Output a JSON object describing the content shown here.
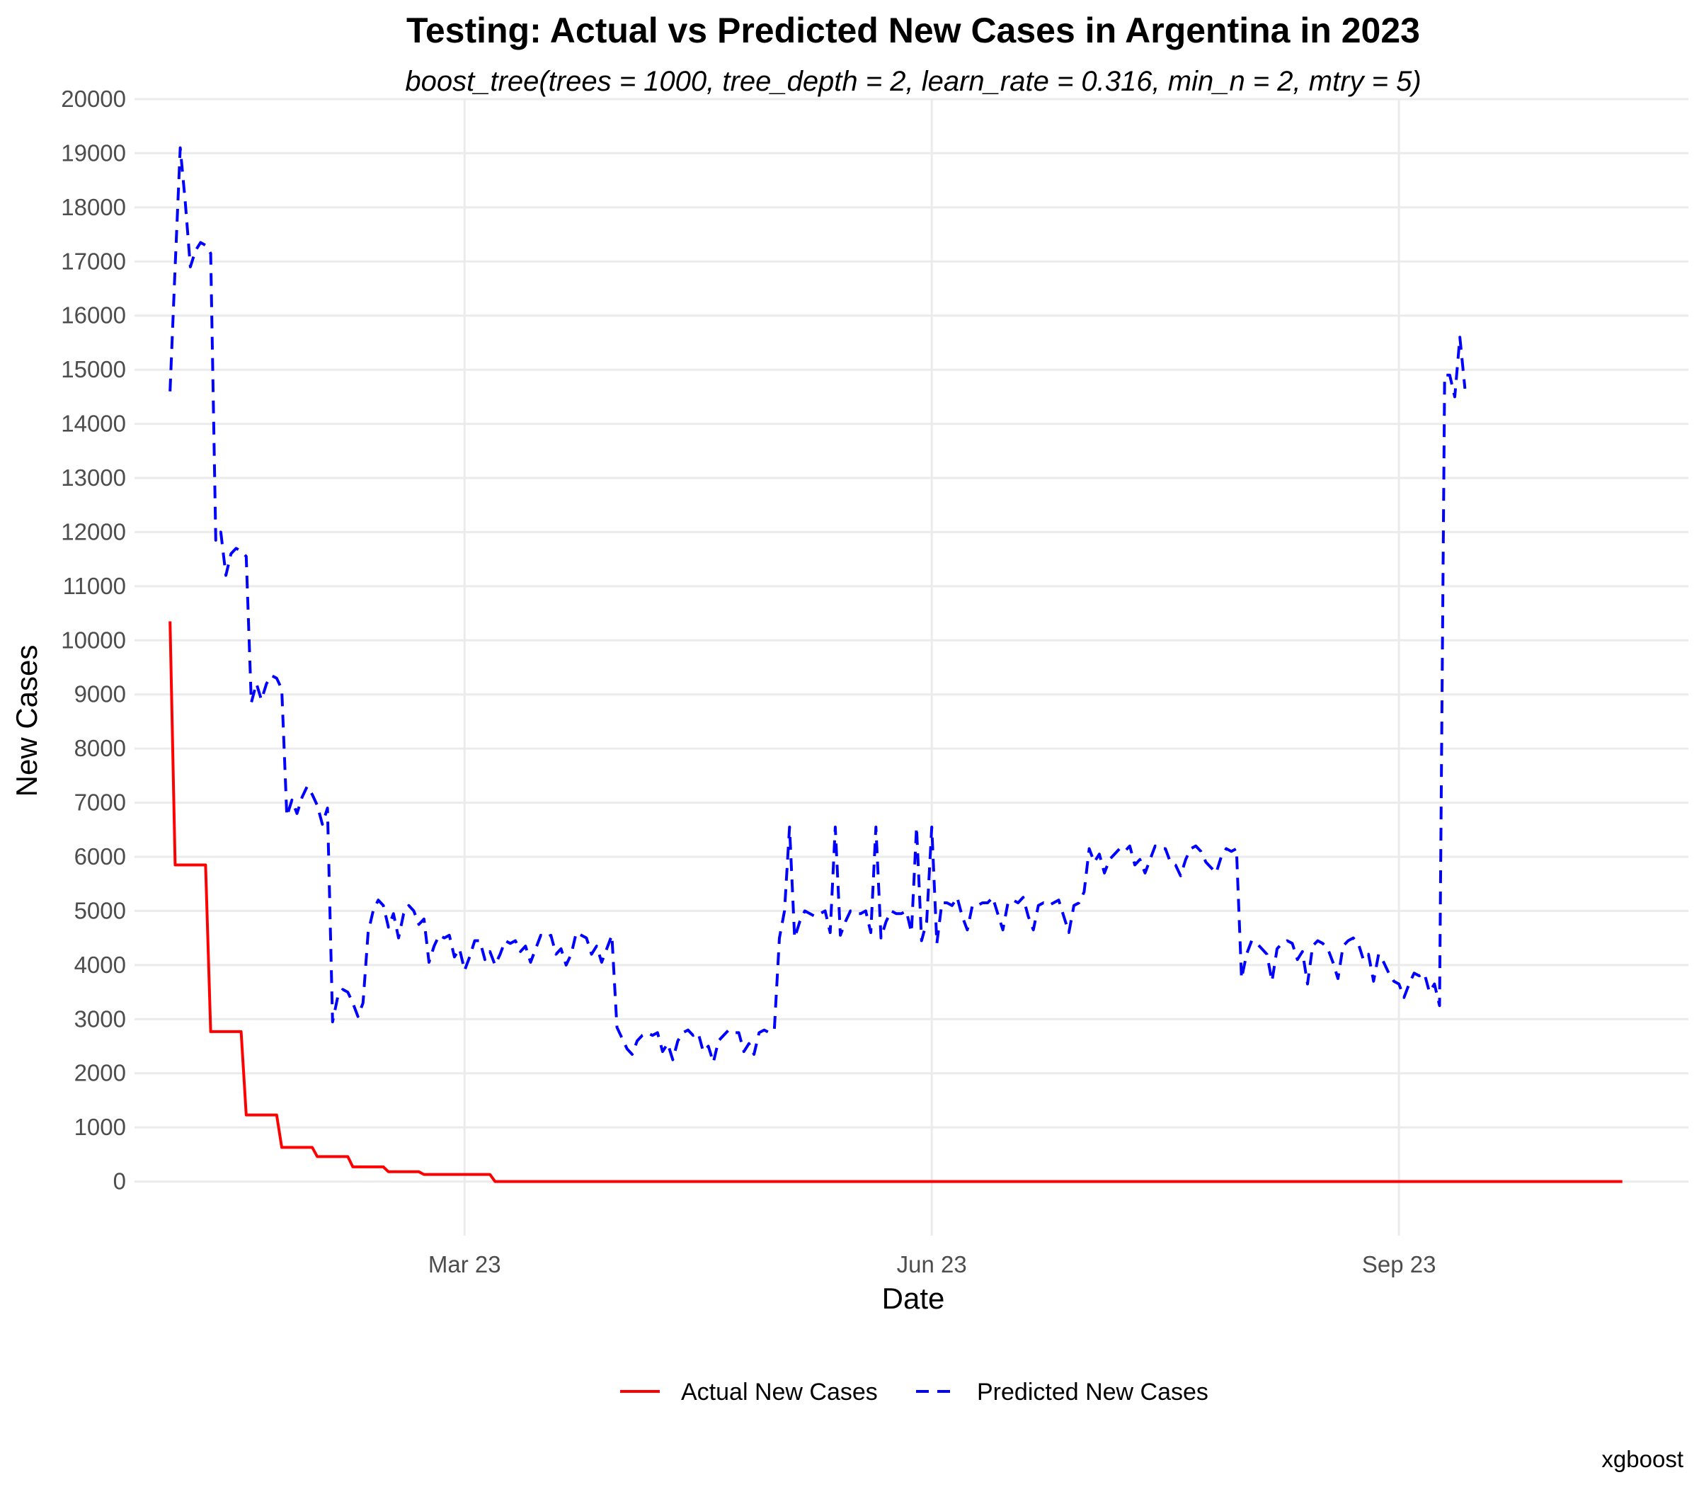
{
  "chart_data": {
    "type": "line",
    "title": "Testing: Actual vs Predicted New Cases in Argentina in 2023",
    "subtitle": "boost_tree(trees = 1000, tree_depth = 2, learn_rate = 0.316, min_n = 2, mtry = 5)",
    "xlabel": "Date",
    "ylabel": "New Cases",
    "caption": "xgboost",
    "ylim": [
      -1000,
      20000
    ],
    "xlim": [
      "2022-12-26",
      "2023-10-28"
    ],
    "x_ticks": [
      {
        "date": "2023-03-01",
        "label": "Mar 23"
      },
      {
        "date": "2023-06-01",
        "label": "Jun 23"
      },
      {
        "date": "2023-09-01",
        "label": "Sep 23"
      }
    ],
    "y_ticks": [
      0,
      1000,
      2000,
      3000,
      4000,
      5000,
      6000,
      7000,
      8000,
      9000,
      10000,
      11000,
      12000,
      13000,
      14000,
      15000,
      16000,
      17000,
      18000,
      19000,
      20000
    ],
    "grid": true,
    "legend_position": "bottom",
    "series": [
      {
        "name": "Actual New Cases",
        "color": "#ff0000",
        "dash": "solid",
        "points": [
          [
            "2023-01-02",
            10350
          ],
          [
            "2023-01-03",
            5850
          ],
          [
            "2023-01-09",
            5850
          ],
          [
            "2023-01-10",
            2770
          ],
          [
            "2023-01-16",
            2770
          ],
          [
            "2023-01-17",
            1230
          ],
          [
            "2023-01-23",
            1230
          ],
          [
            "2023-01-24",
            630
          ],
          [
            "2023-01-30",
            630
          ],
          [
            "2023-01-31",
            460
          ],
          [
            "2023-02-06",
            460
          ],
          [
            "2023-02-07",
            270
          ],
          [
            "2023-02-13",
            270
          ],
          [
            "2023-02-14",
            180
          ],
          [
            "2023-02-20",
            180
          ],
          [
            "2023-02-21",
            130
          ],
          [
            "2023-03-06",
            130
          ],
          [
            "2023-03-07",
            0
          ],
          [
            "2023-10-15",
            0
          ]
        ]
      },
      {
        "name": "Predicted New Cases",
        "color": "#0000ff",
        "dash": "dashed",
        "points": [
          [
            "2023-01-02",
            14600
          ],
          [
            "2023-01-03",
            16900
          ],
          [
            "2023-01-04",
            19100
          ],
          [
            "2023-01-05",
            18100
          ],
          [
            "2023-01-06",
            16900
          ],
          [
            "2023-01-07",
            17200
          ],
          [
            "2023-01-08",
            17350
          ],
          [
            "2023-01-09",
            17300
          ],
          [
            "2023-01-10",
            17150
          ],
          [
            "2023-01-11",
            11850
          ],
          [
            "2023-01-12",
            12000
          ],
          [
            "2023-01-13",
            11200
          ],
          [
            "2023-01-14",
            11600
          ],
          [
            "2023-01-15",
            11700
          ],
          [
            "2023-01-16",
            11650
          ],
          [
            "2023-01-17",
            11550
          ],
          [
            "2023-01-18",
            8850
          ],
          [
            "2023-01-19",
            9200
          ],
          [
            "2023-01-20",
            8900
          ],
          [
            "2023-01-21",
            9200
          ],
          [
            "2023-01-22",
            9350
          ],
          [
            "2023-01-23",
            9300
          ],
          [
            "2023-01-24",
            9100
          ],
          [
            "2023-01-25",
            6750
          ],
          [
            "2023-01-26",
            7050
          ],
          [
            "2023-01-27",
            6800
          ],
          [
            "2023-01-28",
            7100
          ],
          [
            "2023-01-29",
            7300
          ],
          [
            "2023-01-30",
            7150
          ],
          [
            "2023-01-31",
            6950
          ],
          [
            "2023-02-01",
            6600
          ],
          [
            "2023-02-02",
            6900
          ],
          [
            "2023-02-03",
            2950
          ],
          [
            "2023-02-04",
            3400
          ],
          [
            "2023-02-05",
            3550
          ],
          [
            "2023-02-06",
            3500
          ],
          [
            "2023-02-07",
            3300
          ],
          [
            "2023-02-08",
            3050
          ],
          [
            "2023-02-09",
            3300
          ],
          [
            "2023-02-10",
            4600
          ],
          [
            "2023-02-11",
            5000
          ],
          [
            "2023-02-12",
            5200
          ],
          [
            "2023-02-13",
            5100
          ],
          [
            "2023-02-14",
            4700
          ],
          [
            "2023-02-15",
            4950
          ],
          [
            "2023-02-16",
            4500
          ],
          [
            "2023-02-17",
            4950
          ],
          [
            "2023-02-18",
            5100
          ],
          [
            "2023-02-19",
            5000
          ],
          [
            "2023-02-20",
            4750
          ],
          [
            "2023-02-21",
            4850
          ],
          [
            "2023-02-22",
            4050
          ],
          [
            "2023-02-23",
            4350
          ],
          [
            "2023-02-24",
            4550
          ],
          [
            "2023-02-25",
            4500
          ],
          [
            "2023-02-26",
            4550
          ],
          [
            "2023-02-27",
            4150
          ],
          [
            "2023-02-28",
            4300
          ],
          [
            "2023-03-01",
            3900
          ],
          [
            "2023-03-02",
            4150
          ],
          [
            "2023-03-03",
            4450
          ],
          [
            "2023-03-04",
            4450
          ],
          [
            "2023-03-05",
            4100
          ],
          [
            "2023-03-06",
            4250
          ],
          [
            "2023-03-07",
            4000
          ],
          [
            "2023-03-08",
            4200
          ],
          [
            "2023-03-09",
            4450
          ],
          [
            "2023-03-10",
            4400
          ],
          [
            "2023-03-11",
            4450
          ],
          [
            "2023-03-12",
            4250
          ],
          [
            "2023-03-13",
            4350
          ],
          [
            "2023-03-14",
            4050
          ],
          [
            "2023-03-15",
            4300
          ],
          [
            "2023-03-16",
            4550
          ],
          [
            "2023-03-17",
            4500
          ],
          [
            "2023-03-18",
            4550
          ],
          [
            "2023-03-19",
            4200
          ],
          [
            "2023-03-20",
            4300
          ],
          [
            "2023-03-21",
            4000
          ],
          [
            "2023-03-22",
            4200
          ],
          [
            "2023-03-23",
            4600
          ],
          [
            "2023-03-24",
            4550
          ],
          [
            "2023-03-25",
            4500
          ],
          [
            "2023-03-26",
            4200
          ],
          [
            "2023-03-27",
            4350
          ],
          [
            "2023-03-28",
            4050
          ],
          [
            "2023-03-29",
            4300
          ],
          [
            "2023-03-30",
            4550
          ],
          [
            "2023-03-31",
            2850
          ],
          [
            "2023-04-01",
            2650
          ],
          [
            "2023-04-02",
            2450
          ],
          [
            "2023-04-03",
            2350
          ],
          [
            "2023-04-04",
            2600
          ],
          [
            "2023-04-05",
            2700
          ],
          [
            "2023-04-06",
            2750
          ],
          [
            "2023-04-07",
            2700
          ],
          [
            "2023-04-08",
            2750
          ],
          [
            "2023-04-09",
            2400
          ],
          [
            "2023-04-10",
            2550
          ],
          [
            "2023-04-11",
            2250
          ],
          [
            "2023-04-12",
            2600
          ],
          [
            "2023-04-13",
            2750
          ],
          [
            "2023-04-14",
            2800
          ],
          [
            "2023-04-15",
            2700
          ],
          [
            "2023-04-16",
            2750
          ],
          [
            "2023-04-17",
            2400
          ],
          [
            "2023-04-18",
            2500
          ],
          [
            "2023-04-19",
            2200
          ],
          [
            "2023-04-20",
            2600
          ],
          [
            "2023-04-21",
            2700
          ],
          [
            "2023-04-22",
            2800
          ],
          [
            "2023-04-23",
            2750
          ],
          [
            "2023-04-24",
            2750
          ],
          [
            "2023-04-25",
            2400
          ],
          [
            "2023-04-26",
            2550
          ],
          [
            "2023-04-27",
            2350
          ],
          [
            "2023-04-28",
            2750
          ],
          [
            "2023-04-29",
            2800
          ],
          [
            "2023-04-30",
            2750
          ],
          [
            "2023-05-01",
            2800
          ],
          [
            "2023-05-02",
            4500
          ],
          [
            "2023-05-03",
            5000
          ],
          [
            "2023-05-04",
            6550
          ],
          [
            "2023-05-05",
            4500
          ],
          [
            "2023-05-06",
            4800
          ],
          [
            "2023-05-07",
            5000
          ],
          [
            "2023-05-08",
            4950
          ],
          [
            "2023-05-09",
            4900
          ],
          [
            "2023-05-10",
            4950
          ],
          [
            "2023-05-11",
            5000
          ],
          [
            "2023-05-12",
            4600
          ],
          [
            "2023-05-13",
            6550
          ],
          [
            "2023-05-14",
            4550
          ],
          [
            "2023-05-15",
            4800
          ],
          [
            "2023-05-16",
            5000
          ],
          [
            "2023-05-17",
            4950
          ],
          [
            "2023-05-18",
            4950
          ],
          [
            "2023-05-19",
            5000
          ],
          [
            "2023-05-20",
            4600
          ],
          [
            "2023-05-21",
            6550
          ],
          [
            "2023-05-22",
            4500
          ],
          [
            "2023-05-23",
            4800
          ],
          [
            "2023-05-24",
            5000
          ],
          [
            "2023-05-25",
            4950
          ],
          [
            "2023-05-26",
            4950
          ],
          [
            "2023-05-27",
            5000
          ],
          [
            "2023-05-28",
            4600
          ],
          [
            "2023-05-29",
            6550
          ],
          [
            "2023-05-30",
            4450
          ],
          [
            "2023-05-31",
            4800
          ],
          [
            "2023-06-01",
            6550
          ],
          [
            "2023-06-02",
            4400
          ],
          [
            "2023-06-03",
            5150
          ],
          [
            "2023-06-04",
            5150
          ],
          [
            "2023-06-05",
            5100
          ],
          [
            "2023-06-06",
            5250
          ],
          [
            "2023-06-07",
            4900
          ],
          [
            "2023-06-08",
            4650
          ],
          [
            "2023-06-09",
            5100
          ],
          [
            "2023-06-10",
            5100
          ],
          [
            "2023-06-11",
            5150
          ],
          [
            "2023-06-12",
            5150
          ],
          [
            "2023-06-13",
            5250
          ],
          [
            "2023-06-14",
            4950
          ],
          [
            "2023-06-15",
            4650
          ],
          [
            "2023-06-16",
            5150
          ],
          [
            "2023-06-17",
            5200
          ],
          [
            "2023-06-18",
            5150
          ],
          [
            "2023-06-19",
            5250
          ],
          [
            "2023-06-20",
            4900
          ],
          [
            "2023-06-21",
            4650
          ],
          [
            "2023-06-22",
            5100
          ],
          [
            "2023-06-23",
            5150
          ],
          [
            "2023-06-24",
            5100
          ],
          [
            "2023-06-25",
            5150
          ],
          [
            "2023-06-26",
            5200
          ],
          [
            "2023-06-27",
            4900
          ],
          [
            "2023-06-28",
            4600
          ],
          [
            "2023-06-29",
            5100
          ],
          [
            "2023-06-30",
            5150
          ],
          [
            "2023-07-01",
            5350
          ],
          [
            "2023-07-02",
            6150
          ],
          [
            "2023-07-03",
            5900
          ],
          [
            "2023-07-04",
            6050
          ],
          [
            "2023-07-05",
            5700
          ],
          [
            "2023-07-06",
            5950
          ],
          [
            "2023-07-07",
            6050
          ],
          [
            "2023-07-08",
            6150
          ],
          [
            "2023-07-09",
            6100
          ],
          [
            "2023-07-10",
            6200
          ],
          [
            "2023-07-11",
            5850
          ],
          [
            "2023-07-12",
            5950
          ],
          [
            "2023-07-13",
            5700
          ],
          [
            "2023-07-14",
            5950
          ],
          [
            "2023-07-15",
            6200
          ],
          [
            "2023-07-16",
            6150
          ],
          [
            "2023-07-17",
            6150
          ],
          [
            "2023-07-18",
            5900
          ],
          [
            "2023-07-19",
            5850
          ],
          [
            "2023-07-20",
            5650
          ],
          [
            "2023-07-21",
            5950
          ],
          [
            "2023-07-22",
            6150
          ],
          [
            "2023-07-23",
            6200
          ],
          [
            "2023-07-24",
            6100
          ],
          [
            "2023-07-25",
            5900
          ],
          [
            "2023-07-26",
            5800
          ],
          [
            "2023-07-27",
            5700
          ],
          [
            "2023-07-28",
            6000
          ],
          [
            "2023-07-29",
            6150
          ],
          [
            "2023-07-30",
            6100
          ],
          [
            "2023-07-31",
            6150
          ],
          [
            "2023-08-01",
            3750
          ],
          [
            "2023-08-02",
            4200
          ],
          [
            "2023-08-03",
            4450
          ],
          [
            "2023-08-04",
            4400
          ],
          [
            "2023-08-05",
            4300
          ],
          [
            "2023-08-06",
            4200
          ],
          [
            "2023-08-07",
            3700
          ],
          [
            "2023-08-08",
            4300
          ],
          [
            "2023-08-09",
            4400
          ],
          [
            "2023-08-10",
            4450
          ],
          [
            "2023-08-11",
            4400
          ],
          [
            "2023-08-12",
            4100
          ],
          [
            "2023-08-13",
            4250
          ],
          [
            "2023-08-14",
            3650
          ],
          [
            "2023-08-15",
            4350
          ],
          [
            "2023-08-16",
            4450
          ],
          [
            "2023-08-17",
            4400
          ],
          [
            "2023-08-18",
            4300
          ],
          [
            "2023-08-19",
            4050
          ],
          [
            "2023-08-20",
            3750
          ],
          [
            "2023-08-21",
            4350
          ],
          [
            "2023-08-22",
            4450
          ],
          [
            "2023-08-23",
            4500
          ],
          [
            "2023-08-24",
            4400
          ],
          [
            "2023-08-25",
            4100
          ],
          [
            "2023-08-26",
            4200
          ],
          [
            "2023-08-27",
            3700
          ],
          [
            "2023-08-28",
            4200
          ],
          [
            "2023-08-29",
            4050
          ],
          [
            "2023-08-30",
            3850
          ],
          [
            "2023-08-31",
            3700
          ],
          [
            "2023-09-01",
            3650
          ],
          [
            "2023-09-02",
            3400
          ],
          [
            "2023-09-03",
            3650
          ],
          [
            "2023-09-04",
            3850
          ],
          [
            "2023-09-05",
            3800
          ],
          [
            "2023-09-06",
            3850
          ],
          [
            "2023-09-07",
            3500
          ],
          [
            "2023-09-08",
            3650
          ],
          [
            "2023-09-09",
            3250
          ],
          [
            "2023-09-10",
            14900
          ],
          [
            "2023-09-11",
            14900
          ],
          [
            "2023-09-12",
            14500
          ],
          [
            "2023-09-13",
            15600
          ],
          [
            "2023-09-14",
            14650
          ]
        ]
      }
    ]
  }
}
